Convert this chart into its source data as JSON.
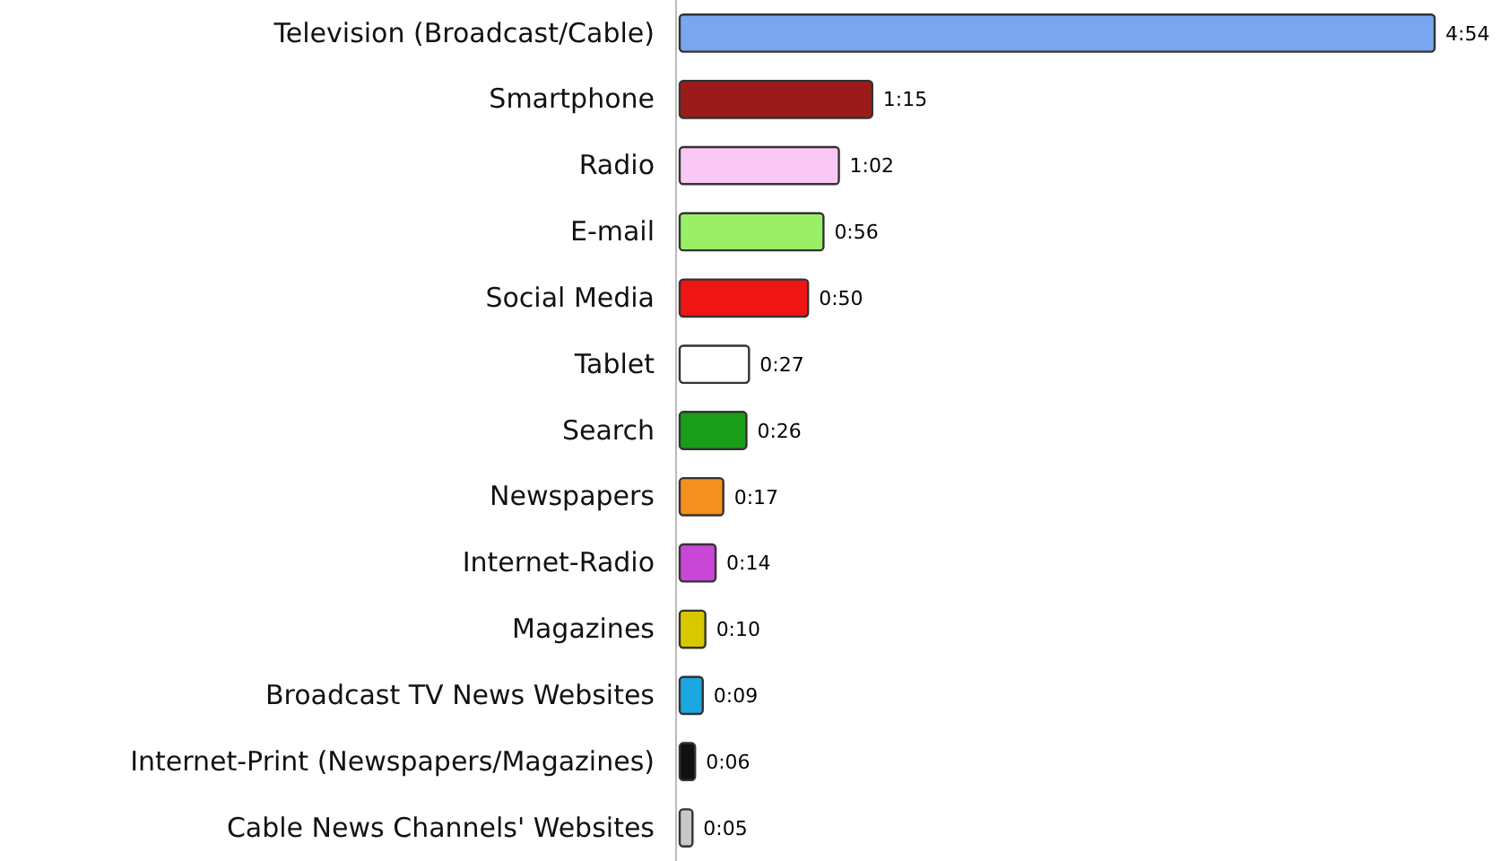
{
  "chart_data": {
    "type": "bar",
    "orientation": "horizontal",
    "categories": [
      "Television (Broadcast/Cable)",
      "Smartphone",
      "Radio",
      "E-mail",
      "Social Media",
      "Tablet",
      "Search",
      "Newspapers",
      "Internet-Radio",
      "Magazines",
      "Broadcast TV News Websites",
      "Internet-Print (Newspapers/Magazines)",
      "Cable News Channels' Websites"
    ],
    "values": [
      294,
      75,
      62,
      56,
      50,
      27,
      26,
      17,
      14,
      10,
      9,
      6,
      5
    ],
    "value_labels": [
      "4:54",
      "1:15",
      "1:02",
      "0:56",
      "0:50",
      "0:27",
      "0:26",
      "0:17",
      "0:14",
      "0:10",
      "0:09",
      "0:06",
      "0:05"
    ],
    "colors": [
      "#7aa6f0",
      "#9b1b1b",
      "#f9c8f5",
      "#99f066",
      "#f01515",
      "#ffffff",
      "#1a9e1a",
      "#f5901e",
      "#c847d6",
      "#d8c800",
      "#1aa6e0",
      "#111111",
      "#c8c8c8"
    ]
  }
}
